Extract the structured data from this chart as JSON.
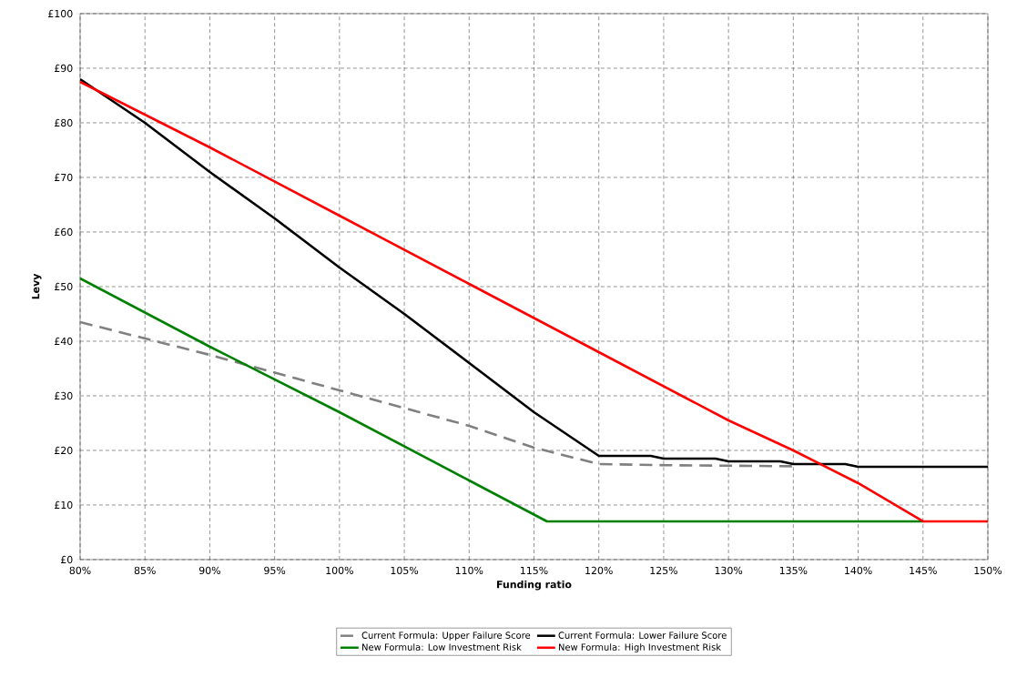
{
  "chart_data": {
    "type": "line",
    "xlabel": "Funding ratio",
    "ylabel": "Levy",
    "xlim": [
      80,
      150
    ],
    "ylim": [
      0,
      100
    ],
    "xticks": [
      {
        "value": 80,
        "label": "80%"
      },
      {
        "value": 85,
        "label": "85%"
      },
      {
        "value": 90,
        "label": "90%"
      },
      {
        "value": 95,
        "label": "95%"
      },
      {
        "value": 100,
        "label": "100%"
      },
      {
        "value": 105,
        "label": "105%"
      },
      {
        "value": 110,
        "label": "110%"
      },
      {
        "value": 115,
        "label": "115%"
      },
      {
        "value": 120,
        "label": "120%"
      },
      {
        "value": 125,
        "label": "125%"
      },
      {
        "value": 130,
        "label": "130%"
      },
      {
        "value": 135,
        "label": "135%"
      },
      {
        "value": 140,
        "label": "140%"
      },
      {
        "value": 145,
        "label": "145%"
      },
      {
        "value": 150,
        "label": "150%"
      }
    ],
    "yticks": [
      {
        "value": 0,
        "label": "£0"
      },
      {
        "value": 10,
        "label": "£10"
      },
      {
        "value": 20,
        "label": "£20"
      },
      {
        "value": 30,
        "label": "£30"
      },
      {
        "value": 40,
        "label": "£40"
      },
      {
        "value": 50,
        "label": "£50"
      },
      {
        "value": 60,
        "label": "£60"
      },
      {
        "value": 70,
        "label": "£70"
      },
      {
        "value": 80,
        "label": "£80"
      },
      {
        "value": 90,
        "label": "£90"
      },
      {
        "value": 100,
        "label": "£100"
      }
    ],
    "grid": true,
    "legend": "bottom",
    "marker": "none",
    "series": [
      {
        "name": "Current Formula: Upper Failure Score",
        "color": "#808080",
        "line_style": "dashed",
        "x": [
          80,
          90,
          100,
          110,
          115,
          120,
          125,
          130,
          135
        ],
        "values": [
          43.5,
          37.5,
          31,
          24.5,
          20.5,
          17.5,
          17.3,
          17.2,
          17.1
        ]
      },
      {
        "name": "Current Formula: Lower Failure Score",
        "color": "#000000",
        "line_style": "solid",
        "x": [
          80,
          85,
          90,
          95,
          100,
          105,
          110,
          115,
          120,
          124,
          125,
          129,
          130,
          134,
          135,
          139,
          140,
          150
        ],
        "values": [
          88,
          80,
          71,
          62.5,
          53.5,
          45,
          36,
          27,
          19,
          19,
          18.5,
          18.5,
          18,
          18,
          17.5,
          17.5,
          17,
          17
        ]
      },
      {
        "name": "New Formula: Low Investment Risk",
        "color": "#008000",
        "line_style": "solid",
        "x": [
          80,
          90,
          100,
          110,
          116,
          145
        ],
        "values": [
          51.5,
          39,
          27,
          14.5,
          7,
          7
        ]
      },
      {
        "name": "New Formula: High Investment Risk",
        "color": "#ff0000",
        "line_style": "solid",
        "x": [
          80,
          90,
          100,
          110,
          116,
          120,
          130,
          135,
          140,
          145,
          150
        ],
        "values": [
          87.5,
          75.5,
          63,
          50.5,
          43,
          38,
          25.5,
          20,
          14,
          7,
          7
        ]
      }
    ]
  }
}
